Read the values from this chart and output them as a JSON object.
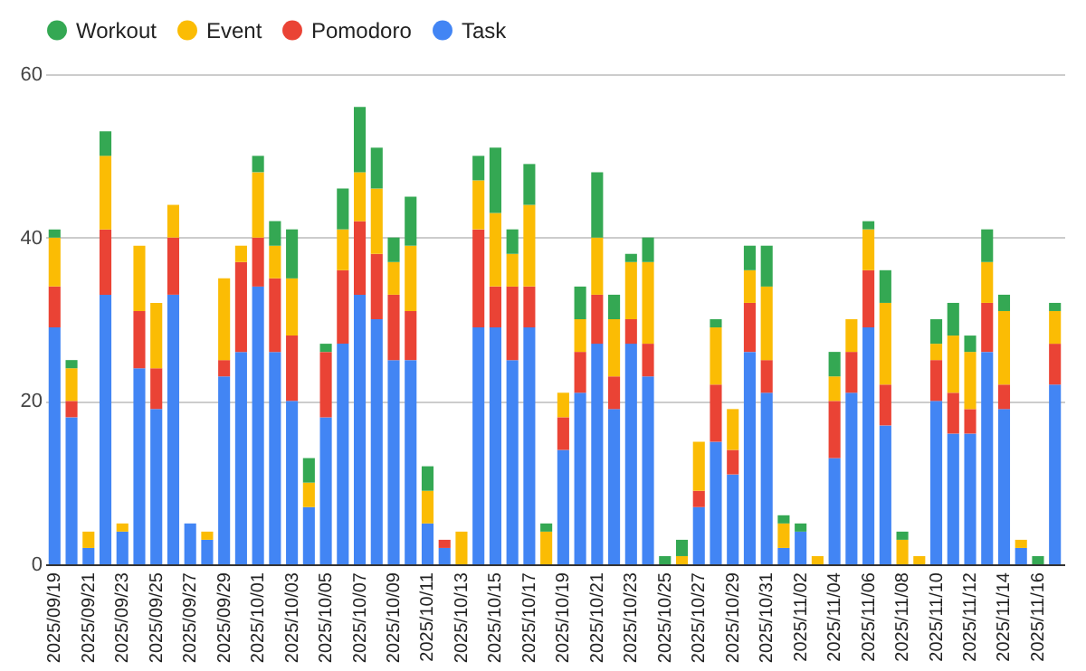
{
  "chart_data": {
    "type": "bar",
    "stacked": true,
    "categories": [
      "2025/09/19",
      null,
      "2025/09/21",
      null,
      "2025/09/23",
      null,
      "2025/09/25",
      null,
      "2025/09/27",
      null,
      "2025/09/29",
      null,
      "2025/10/01",
      null,
      "2025/10/03",
      null,
      "2025/10/05",
      null,
      "2025/10/07",
      null,
      "2025/10/09",
      null,
      "2025/10/11",
      null,
      "2025/10/13",
      null,
      "2025/10/15",
      null,
      "2025/10/17",
      null,
      "2025/10/19",
      null,
      "2025/10/21",
      null,
      "2025/10/23",
      null,
      "2025/10/25",
      null,
      "2025/10/27",
      null,
      "2025/10/29",
      null,
      "2025/10/31",
      null,
      "2025/11/02",
      null,
      "2025/11/04",
      null,
      "2025/11/06",
      null,
      "2025/11/08",
      null,
      "2025/11/10",
      null,
      "2025/11/12",
      null,
      "2025/11/14",
      null,
      "2025/11/16",
      null
    ],
    "series": [
      {
        "name": "Task",
        "color": "#4285f4",
        "values": [
          29,
          18,
          2,
          33,
          4,
          24,
          19,
          33,
          5,
          3,
          23,
          26,
          34,
          26,
          20,
          7,
          18,
          27,
          33,
          30,
          25,
          25,
          5,
          2,
          0,
          29,
          29,
          25,
          29,
          0,
          14,
          21,
          27,
          19,
          27,
          23,
          0,
          0,
          7,
          15,
          11,
          26,
          21,
          2,
          4,
          0,
          13,
          21,
          29,
          17,
          0,
          0,
          20,
          16,
          16,
          26,
          19,
          2,
          0,
          22
        ]
      },
      {
        "name": "Pomodoro",
        "color": "#ea4335",
        "values": [
          5,
          2,
          0,
          8,
          0,
          7,
          5,
          7,
          0,
          0,
          2,
          11,
          6,
          9,
          8,
          0,
          8,
          9,
          9,
          8,
          8,
          6,
          0,
          1,
          0,
          12,
          5,
          9,
          5,
          0,
          4,
          5,
          6,
          4,
          3,
          4,
          0,
          0,
          2,
          7,
          3,
          6,
          4,
          0,
          0,
          0,
          7,
          5,
          7,
          5,
          0,
          0,
          5,
          5,
          3,
          6,
          3,
          0,
          0,
          5
        ]
      },
      {
        "name": "Event",
        "color": "#fbbc04",
        "values": [
          6,
          4,
          2,
          9,
          1,
          8,
          8,
          4,
          0,
          1,
          10,
          2,
          8,
          4,
          7,
          3,
          0,
          5,
          6,
          8,
          4,
          8,
          4,
          0,
          4,
          6,
          9,
          4,
          10,
          4,
          3,
          4,
          7,
          7,
          7,
          10,
          0,
          1,
          6,
          7,
          5,
          4,
          9,
          3,
          0,
          1,
          3,
          4,
          5,
          10,
          3,
          1,
          2,
          7,
          7,
          5,
          9,
          1,
          0,
          4
        ]
      },
      {
        "name": "Workout",
        "color": "#34a853",
        "values": [
          1,
          1,
          0,
          3,
          0,
          0,
          0,
          0,
          0,
          0,
          0,
          0,
          2,
          3,
          6,
          3,
          1,
          5,
          8,
          5,
          3,
          6,
          3,
          0,
          0,
          3,
          8,
          3,
          5,
          1,
          0,
          4,
          8,
          3,
          1,
          3,
          1,
          2,
          0,
          1,
          0,
          3,
          5,
          1,
          1,
          0,
          3,
          0,
          1,
          4,
          1,
          0,
          3,
          4,
          2,
          4,
          2,
          0,
          1,
          1
        ]
      }
    ],
    "ylim": [
      0,
      60
    ],
    "yticks": [
      0,
      20,
      40,
      60
    ],
    "grid": "y",
    "legend": "top"
  }
}
